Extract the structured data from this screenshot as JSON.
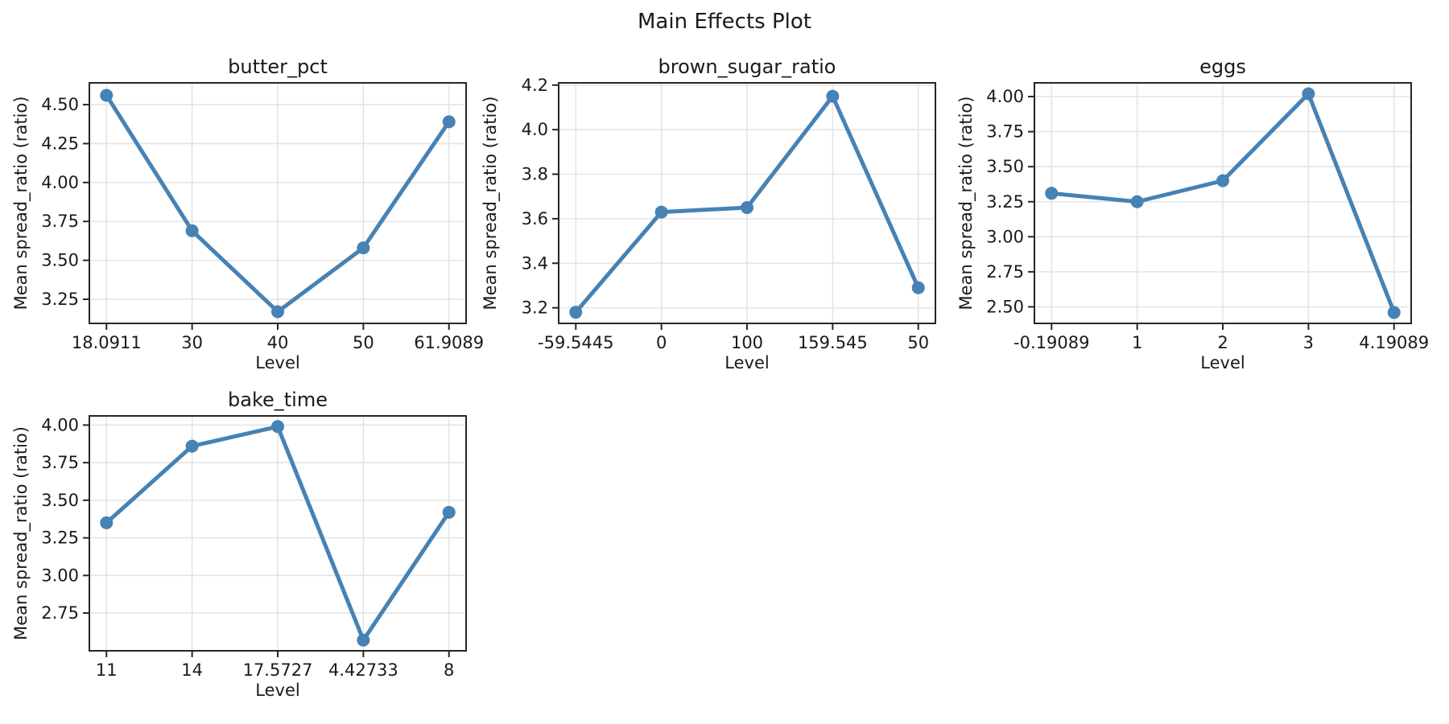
{
  "figure": {
    "title": "Main Effects Plot"
  },
  "colors": {
    "line": "#4682B4",
    "marker": "#4682B4",
    "grid": "#e4e4e4",
    "spine": "#262626",
    "text": "#1a1a1a"
  },
  "chart_data": [
    {
      "type": "line",
      "title": "butter_pct",
      "xlabel": "Level",
      "ylabel": "Mean spread_ratio (ratio)",
      "categories": [
        "18.0911",
        "30",
        "40",
        "50",
        "61.9089"
      ],
      "values": [
        4.56,
        3.69,
        3.17,
        3.58,
        4.39
      ],
      "yticks": [
        3.25,
        3.5,
        3.75,
        4.0,
        4.25,
        4.5
      ],
      "ytick_labels": [
        "3.25",
        "3.50",
        "3.75",
        "4.00",
        "4.25",
        "4.50"
      ],
      "ylim": [
        3.095,
        4.64
      ],
      "grid": true,
      "marker": "circle"
    },
    {
      "type": "line",
      "title": "brown_sugar_ratio",
      "xlabel": "Level",
      "ylabel": "Mean spread_ratio (ratio)",
      "categories": [
        "-59.5445",
        "0",
        "100",
        "159.545",
        "50"
      ],
      "values": [
        3.18,
        3.63,
        3.65,
        4.15,
        3.29
      ],
      "yticks": [
        3.2,
        3.4,
        3.6,
        3.8,
        4.0,
        4.2
      ],
      "ytick_labels": [
        "3.2",
        "3.4",
        "3.6",
        "3.8",
        "4.0",
        "4.2"
      ],
      "ylim": [
        3.13,
        4.21
      ],
      "grid": true,
      "marker": "circle"
    },
    {
      "type": "line",
      "title": "eggs",
      "xlabel": "Level",
      "ylabel": "Mean spread_ratio (ratio)",
      "categories": [
        "-0.19089",
        "1",
        "2",
        "3",
        "4.19089"
      ],
      "values": [
        3.31,
        3.25,
        3.4,
        4.02,
        2.46
      ],
      "yticks": [
        2.5,
        2.75,
        3.0,
        3.25,
        3.5,
        3.75,
        4.0
      ],
      "ytick_labels": [
        "2.50",
        "2.75",
        "3.00",
        "3.25",
        "3.50",
        "3.75",
        "4.00"
      ],
      "ylim": [
        2.382,
        4.098
      ],
      "grid": true,
      "marker": "circle"
    },
    {
      "type": "line",
      "title": "bake_time",
      "xlabel": "Level",
      "ylabel": "Mean spread_ratio (ratio)",
      "categories": [
        "11",
        "14",
        "17.5727",
        "4.42733",
        "8"
      ],
      "values": [
        3.35,
        3.86,
        3.99,
        2.57,
        3.42
      ],
      "yticks": [
        2.75,
        3.0,
        3.25,
        3.5,
        3.75,
        4.0
      ],
      "ytick_labels": [
        "2.75",
        "3.00",
        "3.25",
        "3.50",
        "3.75",
        "4.00"
      ],
      "ylim": [
        2.499,
        4.061
      ],
      "grid": true,
      "marker": "circle"
    }
  ]
}
